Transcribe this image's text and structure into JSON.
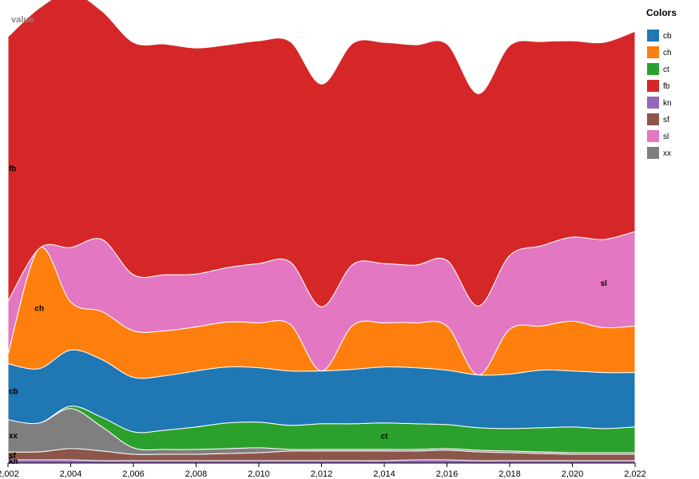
{
  "chart_data": {
    "type": "area",
    "layout": "stream",
    "title": "",
    "ylabel": "value",
    "xlabel": "",
    "x": [
      2002,
      2003,
      2004,
      2005,
      2006,
      2007,
      2008,
      2009,
      2010,
      2011,
      2012,
      2013,
      2014,
      2015,
      2016,
      2017,
      2018,
      2019,
      2020,
      2021,
      2022
    ],
    "x_ticks": [
      2002,
      2004,
      2006,
      2008,
      2010,
      2012,
      2014,
      2016,
      2018,
      2020,
      2022
    ],
    "x_tick_labels": [
      "2,002",
      "2,004",
      "2,006",
      "2,008",
      "2,010",
      "2,012",
      "2,014",
      "2,016",
      "2,018",
      "2,020",
      "2,022"
    ],
    "ylim": [
      0,
      560
    ],
    "grid": false,
    "legend": {
      "title": "Colors",
      "placement": "right"
    },
    "order_bottom_to_top": [
      "kn",
      "sf",
      "xx",
      "ct",
      "cb",
      "ch",
      "sl",
      "fb"
    ],
    "series": [
      {
        "name": "cb",
        "color": "#1f77b4",
        "values": [
          70,
          68,
          70,
          72,
          68,
          68,
          70,
          70,
          68,
          68,
          66,
          68,
          70,
          70,
          68,
          66,
          68,
          72,
          70,
          70,
          68
        ]
      },
      {
        "name": "ch",
        "color": "#ff7f0e",
        "values": [
          12,
          150,
          60,
          60,
          58,
          56,
          55,
          56,
          56,
          58,
          0,
          55,
          55,
          56,
          55,
          0,
          56,
          55,
          62,
          56,
          58
        ]
      },
      {
        "name": "ct",
        "color": "#2ca02c",
        "values": [
          0,
          0,
          3,
          12,
          20,
          24,
          28,
          32,
          32,
          30,
          32,
          32,
          33,
          32,
          30,
          28,
          28,
          30,
          32,
          30,
          32
        ]
      },
      {
        "name": "fb",
        "color": "#d62728",
        "values": [
          330,
          300,
          318,
          285,
          290,
          288,
          282,
          278,
          278,
          275,
          278,
          276,
          276,
          275,
          270,
          265,
          262,
          255,
          245,
          246,
          250
        ]
      },
      {
        "name": "kn",
        "color": "#9467bd",
        "values": [
          4,
          4,
          4,
          3,
          3,
          3,
          3,
          3,
          3,
          3,
          3,
          3,
          3,
          4,
          4,
          3,
          3,
          3,
          3,
          3,
          3
        ]
      },
      {
        "name": "sf",
        "color": "#8c564b",
        "values": [
          10,
          10,
          14,
          12,
          8,
          8,
          8,
          9,
          10,
          12,
          12,
          12,
          12,
          11,
          12,
          11,
          10,
          9,
          8,
          8,
          8
        ]
      },
      {
        "name": "sl",
        "color": "#e377c2",
        "values": [
          66,
          0,
          68,
          90,
          70,
          70,
          66,
          68,
          74,
          78,
          80,
          76,
          74,
          72,
          82,
          86,
          92,
          100,
          105,
          110,
          118
        ]
      },
      {
        "name": "xx",
        "color": "#7f7f7f",
        "values": [
          40,
          36,
          50,
          30,
          8,
          6,
          6,
          6,
          6,
          2,
          2,
          2,
          2,
          2,
          2,
          2,
          2,
          2,
          2,
          2,
          2
        ]
      }
    ]
  }
}
